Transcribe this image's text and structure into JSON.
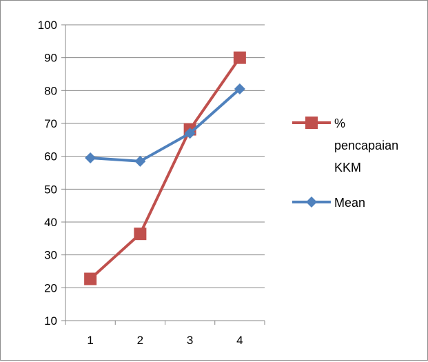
{
  "chart_data": {
    "type": "line",
    "title": "",
    "xlabel": "",
    "ylabel": "",
    "categories": [
      "1",
      "2",
      "3",
      "4"
    ],
    "ylim": [
      10,
      100
    ],
    "yticks": [
      "10",
      "20",
      "30",
      "40",
      "50",
      "60",
      "70",
      "80",
      "90",
      "100"
    ],
    "grid": true,
    "legend": "right",
    "series": [
      {
        "name_lines": [
          "%",
          "pencapaian",
          "KKM"
        ],
        "color": "#c0504d",
        "marker": "square",
        "values": [
          22.7,
          36.4,
          68.2,
          90.0
        ]
      },
      {
        "name_lines": [
          "Mean"
        ],
        "color": "#4f81bd",
        "marker": "diamond",
        "values": [
          59.5,
          58.5,
          67.0,
          80.5
        ]
      }
    ]
  }
}
